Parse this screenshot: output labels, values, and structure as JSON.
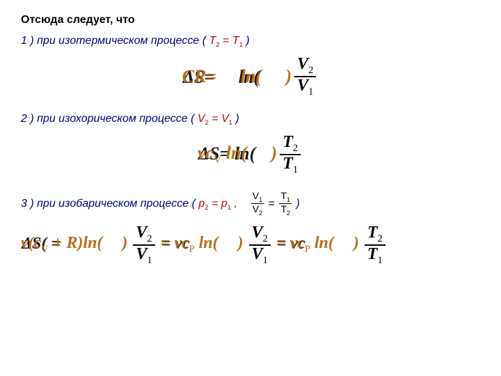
{
  "colors": {
    "text_black": "#000000",
    "text_navy": "#00007a",
    "text_red": "#c00000",
    "formula_fill": "#b86d1a",
    "formula_shadow": "#000000",
    "background": "#ffffff"
  },
  "typography": {
    "body_font": "Arial, sans-serif",
    "formula_font": "Times New Roman, serif",
    "body_size_pt": 12,
    "formula_size_pt": 20
  },
  "heading": "Отсюда следует, что",
  "case1": {
    "label_prefix": "1 ) при изотермическом процессе ( ",
    "condition": "T",
    "cond_sub2": "2",
    "cond_eq": " = T",
    "cond_sub1": "1",
    "label_suffix": " )",
    "eq_left_shadow": "ΔS=",
    "eq_left_front": "CR=",
    "eq_mid": " ln( ",
    "eq_close": ")",
    "frac_num": "V",
    "frac_num_sub": "2",
    "frac_den": "V",
    "frac_den_sub": "1"
  },
  "case2": {
    "label_prefix": "2 ) при изохорическом процессе ( ",
    "condition": "V",
    "cond_sub2": "2",
    "cond_eq": " = V",
    "cond_sub1": "1",
    "label_suffix": " )",
    "eq_left_shadow": "ΔS=",
    "eq_left_front": "νc",
    "eq_cv_sub": "V",
    "eq_mid": " ln( ",
    "eq_close": ")",
    "frac_num": "T",
    "frac_num_sub": "2",
    "frac_den": "T",
    "frac_den_sub": "1"
  },
  "case3": {
    "label_prefix": "3 ) при изобарическом процессе (  ",
    "condition": "p",
    "cond_sub2": "2",
    "cond_eq": " = p",
    "cond_sub1": "1",
    "label_comma": " ,",
    "mini_num1": "V",
    "mini_num1_sub": "1",
    "mini_den1": "V",
    "mini_den1_sub": "2",
    "mini_eq": " = ",
    "mini_num2": "T",
    "mini_num2_sub": "1",
    "mini_den2": "T",
    "mini_den2_sub": "2",
    "label_suffix": "  )",
    "eq_deltaS_shadow": "ΔS( =",
    "eq_deltaS_front": "ν(c",
    "eq_cv_sub": "V",
    "eq_plusR": " + R)ln(",
    "eq_close": ")",
    "frac1_num": "V",
    "frac1_num_sub": "2",
    "frac1_den": "V",
    "frac1_den_sub": "1",
    "eq_vc_shadow": "= νc",
    "eq_ln": " ln(",
    "eq_p_sub": "P",
    "frac2_num": "V",
    "frac2_num_sub": "2",
    "frac2_den": "V",
    "frac2_den_sub": "1",
    "frac3_num": "T",
    "frac3_num_sub": "2",
    "frac3_den": "T",
    "frac3_den_sub": "1"
  }
}
